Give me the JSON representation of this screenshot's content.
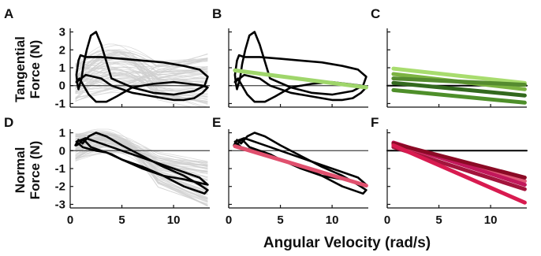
{
  "figure": {
    "xlabel": "Angular Velocity (rad/s)",
    "row_labels": [
      {
        "line1": "Tangential",
        "line2": "Force (N)"
      },
      {
        "line1": "Normal",
        "line2": "Force (N)"
      }
    ]
  },
  "chart_data": [
    {
      "panel": "A",
      "type": "line",
      "xlim": [
        0,
        13.5
      ],
      "ylim": [
        -1.2,
        3.2
      ],
      "yticks": [
        -1,
        0,
        1,
        2,
        3
      ],
      "xticks": [],
      "zero_line": true,
      "gray_background_traces": true,
      "series": [
        {
          "color": "#000000",
          "x": [
            0.6,
            0.8,
            1.0,
            1.5,
            3,
            5,
            7,
            9,
            11,
            12.5,
            13.3,
            13,
            12,
            10,
            8,
            6,
            4,
            3,
            2.5,
            2,
            1.6,
            1.3,
            1.1,
            0.9,
            0.8,
            0.7,
            0.6
          ],
          "y": [
            0.6,
            1.4,
            1.7,
            1.6,
            1.6,
            1.5,
            1.4,
            1.3,
            1.1,
            0.9,
            0.5,
            0.0,
            -0.3,
            -0.5,
            -0.4,
            -0.1,
            0.4,
            2.3,
            3.0,
            2.8,
            2.0,
            1.2,
            0.4,
            0.0,
            -0.2,
            0.1,
            0.6
          ]
        },
        {
          "color": "#000000",
          "x": [
            0.6,
            1.5,
            3,
            4,
            6,
            8,
            10,
            11,
            12,
            12.8,
            13.3,
            12.8,
            11.5,
            10,
            8,
            6,
            4.5,
            3.5,
            2.5,
            1.8,
            1.2,
            0.9,
            0.7,
            0.6
          ],
          "y": [
            0.2,
            0.6,
            0.4,
            0.0,
            -0.4,
            -0.6,
            -0.8,
            -0.8,
            -0.7,
            -0.4,
            -0.1,
            0.0,
            0.1,
            0.2,
            0.1,
            -0.1,
            -0.6,
            -0.9,
            -0.9,
            -0.5,
            0.1,
            0.4,
            0.3,
            0.2
          ]
        }
      ]
    },
    {
      "panel": "B",
      "type": "line",
      "xlim": [
        0,
        13.5
      ],
      "ylim": [
        -1.2,
        3.2
      ],
      "yticks": [
        -1,
        0,
        1,
        2,
        3
      ],
      "xticks": [],
      "zero_line": true,
      "gray_background_traces": false,
      "series": [
        {
          "color": "#000000",
          "x": [
            0.6,
            0.8,
            1.0,
            1.5,
            3,
            5,
            7,
            9,
            11,
            12.5,
            13.3,
            13,
            12,
            10,
            8,
            6,
            4,
            3,
            2.5,
            2,
            1.6,
            1.3,
            1.1,
            0.9,
            0.8,
            0.7,
            0.6
          ],
          "y": [
            0.6,
            1.4,
            1.7,
            1.6,
            1.6,
            1.5,
            1.4,
            1.3,
            1.1,
            0.9,
            0.5,
            0.0,
            -0.3,
            -0.5,
            -0.4,
            -0.1,
            0.4,
            2.3,
            3.0,
            2.8,
            2.0,
            1.2,
            0.4,
            0.0,
            -0.2,
            0.1,
            0.6
          ]
        },
        {
          "color": "#000000",
          "x": [
            0.6,
            1.5,
            3,
            4,
            6,
            8,
            10,
            11,
            12,
            12.8,
            13.3,
            12.8,
            11.5,
            10,
            8,
            6,
            4.5,
            3.5,
            2.5,
            1.8,
            1.2,
            0.9,
            0.7,
            0.6
          ],
          "y": [
            0.2,
            0.6,
            0.4,
            0.0,
            -0.4,
            -0.6,
            -0.8,
            -0.8,
            -0.7,
            -0.4,
            -0.1,
            0.0,
            0.1,
            0.2,
            0.1,
            -0.1,
            -0.6,
            -0.9,
            -0.9,
            -0.5,
            0.1,
            0.4,
            0.3,
            0.2
          ]
        },
        {
          "color": "#9FD66B",
          "width": 5,
          "x": [
            0.6,
            13.3
          ],
          "y": [
            0.85,
            -0.1
          ]
        }
      ]
    },
    {
      "panel": "C",
      "type": "line",
      "xlim": [
        0,
        13.5
      ],
      "ylim": [
        -1.2,
        3.2
      ],
      "yticks": [
        -1,
        0,
        1,
        2,
        3
      ],
      "xticks": [],
      "zero_line": true,
      "gray_background_traces": false,
      "series": [
        {
          "color": "#000000",
          "width": 2,
          "x": [
            0,
            13.5
          ],
          "y": [
            0,
            0
          ]
        },
        {
          "color": "#A8DC6E",
          "width": 5,
          "x": [
            0.6,
            13.3
          ],
          "y": [
            0.95,
            0.15
          ]
        },
        {
          "color": "#7CB342",
          "width": 5,
          "x": [
            0.6,
            13.3
          ],
          "y": [
            0.65,
            -0.2
          ]
        },
        {
          "color": "#558B2F",
          "width": 5,
          "x": [
            0.6,
            13.3
          ],
          "y": [
            0.4,
            0.05
          ]
        },
        {
          "color": "#33691E",
          "width": 5,
          "x": [
            0.6,
            13.3
          ],
          "y": [
            0.15,
            -0.55
          ]
        },
        {
          "color": "#4E8F2A",
          "width": 5,
          "x": [
            0.6,
            13.3
          ],
          "y": [
            -0.25,
            -0.95
          ]
        }
      ]
    },
    {
      "panel": "D",
      "type": "line",
      "xlim": [
        0,
        13.5
      ],
      "ylim": [
        -3.2,
        1.2
      ],
      "yticks": [
        -3,
        -2,
        -1,
        0,
        1
      ],
      "xticks": [
        0,
        5,
        10
      ],
      "zero_line": true,
      "gray_background_traces": true,
      "series": [
        {
          "color": "#000000",
          "x": [
            0.5,
            0.8,
            1.2,
            1.8,
            2.5,
            3.5,
            5,
            7,
            9,
            11,
            12.5,
            13.3,
            13,
            11,
            9,
            7,
            5,
            4,
            3,
            2,
            1.5,
            1.2,
            0.9,
            0.6
          ],
          "y": [
            0.3,
            0.6,
            0.4,
            0.8,
            1.0,
            0.8,
            0.3,
            -0.3,
            -0.9,
            -1.4,
            -1.9,
            -2.2,
            -2.4,
            -2.0,
            -1.4,
            -0.9,
            -0.5,
            -0.2,
            0.0,
            0.2,
            0.5,
            0.6,
            0.4,
            0.3
          ]
        },
        {
          "color": "#000000",
          "x": [
            0.6,
            1.5,
            3,
            5,
            7,
            9,
            11,
            12.5,
            13.3,
            12.5,
            11,
            9,
            7,
            5,
            3.5,
            2.5,
            1.8,
            1.2,
            0.8,
            0.6
          ],
          "y": [
            0.5,
            0.7,
            0.4,
            0.0,
            -0.4,
            -0.8,
            -1.2,
            -1.5,
            -1.9,
            -1.8,
            -1.6,
            -1.4,
            -1.0,
            -0.5,
            -0.1,
            0.0,
            0.1,
            0.2,
            0.4,
            0.5
          ]
        }
      ]
    },
    {
      "panel": "E",
      "type": "line",
      "xlim": [
        0,
        13.5
      ],
      "ylim": [
        -3.2,
        1.2
      ],
      "yticks": [
        -3,
        -2,
        -1,
        0,
        1
      ],
      "xticks": [
        0,
        5,
        10
      ],
      "zero_line": true,
      "gray_background_traces": false,
      "series": [
        {
          "color": "#000000",
          "x": [
            0.5,
            0.8,
            1.2,
            1.8,
            2.5,
            3.5,
            5,
            7,
            9,
            11,
            12.5,
            13.3,
            13,
            11,
            9,
            7,
            5,
            4,
            3,
            2,
            1.5,
            1.2,
            0.9,
            0.6
          ],
          "y": [
            0.3,
            0.6,
            0.4,
            0.8,
            1.0,
            0.8,
            0.3,
            -0.3,
            -0.9,
            -1.4,
            -1.9,
            -2.2,
            -2.4,
            -2.0,
            -1.4,
            -0.9,
            -0.5,
            -0.2,
            0.0,
            0.2,
            0.5,
            0.6,
            0.4,
            0.3
          ]
        },
        {
          "color": "#000000",
          "x": [
            0.6,
            1.5,
            3,
            5,
            7,
            9,
            11,
            12.5,
            13.3,
            12.5,
            11,
            9,
            7,
            5,
            3.5,
            2.5,
            1.8,
            1.2,
            0.8,
            0.6
          ],
          "y": [
            0.5,
            0.7,
            0.4,
            0.0,
            -0.4,
            -0.8,
            -1.2,
            -1.5,
            -1.9,
            -1.8,
            -1.6,
            -1.4,
            -1.0,
            -0.5,
            -0.1,
            0.0,
            0.1,
            0.2,
            0.4,
            0.5
          ]
        },
        {
          "color": "#E0506E",
          "width": 5,
          "x": [
            0.6,
            13.3
          ],
          "y": [
            0.25,
            -1.95
          ]
        }
      ]
    },
    {
      "panel": "F",
      "type": "line",
      "xlim": [
        0,
        13.5
      ],
      "ylim": [
        -3.2,
        1.2
      ],
      "yticks": [
        -3,
        -2,
        -1,
        0,
        1
      ],
      "xticks": [
        0,
        5,
        10
      ],
      "zero_line": true,
      "gray_background_traces": false,
      "series": [
        {
          "color": "#000000",
          "width": 2,
          "x": [
            0,
            13.5
          ],
          "y": [
            0,
            0
          ]
        },
        {
          "color": "#E05A78",
          "width": 5,
          "x": [
            0.6,
            13.3
          ],
          "y": [
            0.35,
            -1.7
          ]
        },
        {
          "color": "#C2185B",
          "width": 5,
          "x": [
            0.6,
            13.3
          ],
          "y": [
            0.45,
            -1.9
          ]
        },
        {
          "color": "#8B0A25",
          "width": 5,
          "x": [
            0.6,
            13.3
          ],
          "y": [
            0.4,
            -1.5
          ]
        },
        {
          "color": "#A3143C",
          "width": 5,
          "x": [
            0.6,
            13.3
          ],
          "y": [
            0.2,
            -2.15
          ]
        },
        {
          "color": "#D81B50",
          "width": 5,
          "x": [
            0.6,
            13.3
          ],
          "y": [
            0.3,
            -2.9
          ]
        }
      ]
    }
  ]
}
